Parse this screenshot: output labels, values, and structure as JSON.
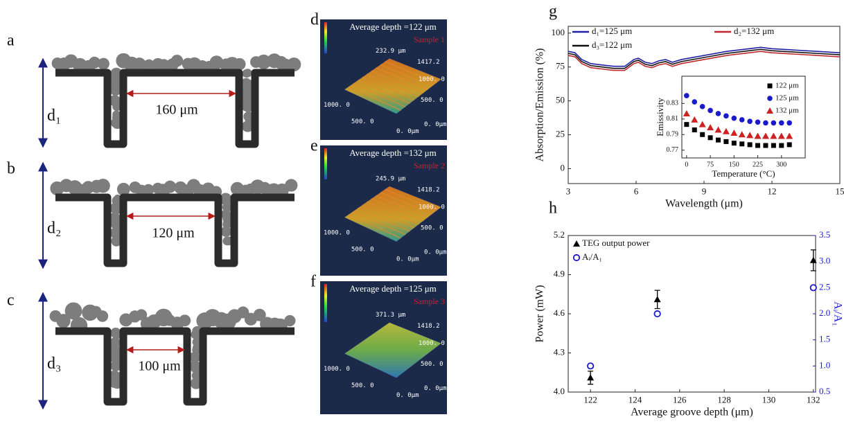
{
  "diagrams": [
    {
      "letter": "a",
      "depth": "d₁",
      "width": "160 μm"
    },
    {
      "letter": "b",
      "depth": "d₂",
      "width": "120 μm"
    },
    {
      "letter": "c",
      "depth": "d₃",
      "width": "100 μm"
    }
  ],
  "surfaces": [
    {
      "letter": "d",
      "depth_label": "Average depth =122 μm",
      "sample": "Sample 1",
      "z_label": "232.9 μm",
      "y_ticks": [
        "1417.2",
        "1000. 0",
        "500. 0",
        "0. 0μm"
      ],
      "x_ticks": [
        "1000. 0",
        "500. 0",
        "0. 0μm"
      ]
    },
    {
      "letter": "e",
      "depth_label": "Average depth =132 μm",
      "sample": "Sample 2",
      "z_label": "245.9 μm",
      "y_ticks": [
        "1418.2",
        "1000. 0",
        "500. 0",
        "0. 0μm"
      ],
      "x_ticks": [
        "1000. 0",
        "500. 0",
        "0. 0μm"
      ]
    },
    {
      "letter": "f",
      "depth_label": "Average depth =125 μm",
      "sample": "Sample 3",
      "z_label": "371.3 μm",
      "y_ticks": [
        "1418.2",
        "1000. 0",
        "500. 0",
        "0. 0μm"
      ],
      "x_ticks": [
        "1000. 0",
        "500. 0",
        "0. 0μm"
      ]
    }
  ],
  "chart_data": [
    {
      "type": "line",
      "letter": "g",
      "xlabel": "Wavelength (μm)",
      "ylabel": "Absorption/Emission (%)",
      "xlim": [
        3,
        15
      ],
      "xticks": [
        3,
        6,
        9,
        12,
        15
      ],
      "ylim": [
        -11,
        105
      ],
      "yticks": [
        0,
        25,
        50,
        75,
        100
      ],
      "legend": "top",
      "x": [
        3,
        3.3,
        3.6,
        4,
        4.5,
        5,
        5.5,
        5.9,
        6.1,
        6.4,
        6.7,
        7,
        7.3,
        7.6,
        8,
        9,
        10,
        11,
        11.5,
        12,
        13,
        14,
        15
      ],
      "series": [
        {
          "name": "d₁=125 μm",
          "color": "#1f1fa8",
          "values": [
            86.5,
            85.5,
            80.5,
            77.5,
            76.5,
            75.5,
            75.5,
            80.5,
            81.5,
            78.5,
            77.5,
            79.5,
            80.5,
            78.5,
            80.5,
            83.5,
            86.5,
            88.5,
            89.5,
            88.5,
            87.5,
            86.5,
            85.5
          ]
        },
        {
          "name": "d₂=132 μm",
          "color": "#c0282d",
          "values": [
            83.5,
            82.5,
            77.5,
            74.5,
            73.5,
            72.5,
            72.5,
            77.5,
            78.5,
            75.5,
            74.5,
            76.5,
            77.5,
            75.5,
            77.5,
            80.5,
            83.5,
            85.5,
            86.5,
            85.5,
            84.5,
            83.5,
            82.5
          ]
        },
        {
          "name": "d₃=122 μm",
          "color": "#111111",
          "values": [
            85,
            84,
            79,
            76,
            75,
            74,
            74,
            79,
            80,
            77,
            76,
            78,
            79,
            77,
            79,
            82,
            85,
            87,
            88,
            87,
            86,
            85,
            84
          ]
        }
      ]
    },
    {
      "type": "scatter",
      "xlabel": "Temperature (°C)",
      "ylabel": "Emissivity",
      "xlim": [
        -15,
        375
      ],
      "xticks": [
        0,
        75,
        150,
        225,
        300
      ],
      "ylim": [
        0.76,
        0.865
      ],
      "yticks": [
        0.77,
        0.79,
        0.81,
        0.83
      ],
      "legend": "upper right",
      "x": [
        0,
        25,
        50,
        75,
        100,
        125,
        150,
        175,
        200,
        225,
        250,
        275,
        300,
        325
      ],
      "series": [
        {
          "name": "122 μm",
          "color": "#000000",
          "marker": "square",
          "filled": true,
          "values": [
            0.803,
            0.796,
            0.79,
            0.786,
            0.783,
            0.781,
            0.779,
            0.778,
            0.777,
            0.776,
            0.776,
            0.776,
            0.776,
            0.777
          ]
        },
        {
          "name": "125 μm",
          "color": "#1a1acc",
          "marker": "circle",
          "filled": true,
          "values": [
            0.84,
            0.832,
            0.826,
            0.821,
            0.817,
            0.814,
            0.811,
            0.809,
            0.807,
            0.806,
            0.805,
            0.805,
            0.805,
            0.805
          ]
        },
        {
          "name": "132 μm",
          "color": "#cc2222",
          "marker": "triangle",
          "filled": true,
          "values": [
            0.817,
            0.809,
            0.803,
            0.799,
            0.796,
            0.794,
            0.792,
            0.79,
            0.789,
            0.788,
            0.788,
            0.788,
            0.788,
            0.788
          ]
        }
      ]
    },
    {
      "type": "scatter",
      "letter": "h",
      "xlabel": "Average groove depth (μm)",
      "ylabel": "Power (mW)",
      "y2label": "Aᵢ/A₁",
      "xlim": [
        121,
        132.1
      ],
      "xticks": [
        122,
        124,
        126,
        128,
        130,
        132
      ],
      "ylim": [
        4.0,
        5.2
      ],
      "yticks": [
        {
          "value": 4.0,
          "label": "4.0"
        },
        4.3,
        4.6,
        4.9,
        {
          "value": 5.2,
          "label": "5.2"
        }
      ],
      "y2lim": [
        0.5,
        3.5
      ],
      "y2ticks": [
        0.5,
        {
          "value": 1.0,
          "label": "1.0"
        },
        1.5,
        {
          "value": 2.0,
          "label": "2.0"
        },
        2.5,
        {
          "value": 3.0,
          "label": "3.0"
        },
        3.5
      ],
      "legend": "upper left",
      "x": [
        122,
        125,
        132
      ],
      "series": [
        {
          "name": "TEG output power",
          "color": "#000000",
          "marker": "triangle",
          "filled": true,
          "values": [
            4.11,
            4.71,
            5.01
          ],
          "errors": [
            0.05,
            0.07,
            0.08
          ]
        },
        {
          "name": "Aᵢ/A₁",
          "color": "#1a1acc",
          "marker": "circle",
          "filled": false,
          "axis": "y2",
          "values": [
            1.0,
            2.0,
            2.5
          ]
        }
      ]
    }
  ]
}
